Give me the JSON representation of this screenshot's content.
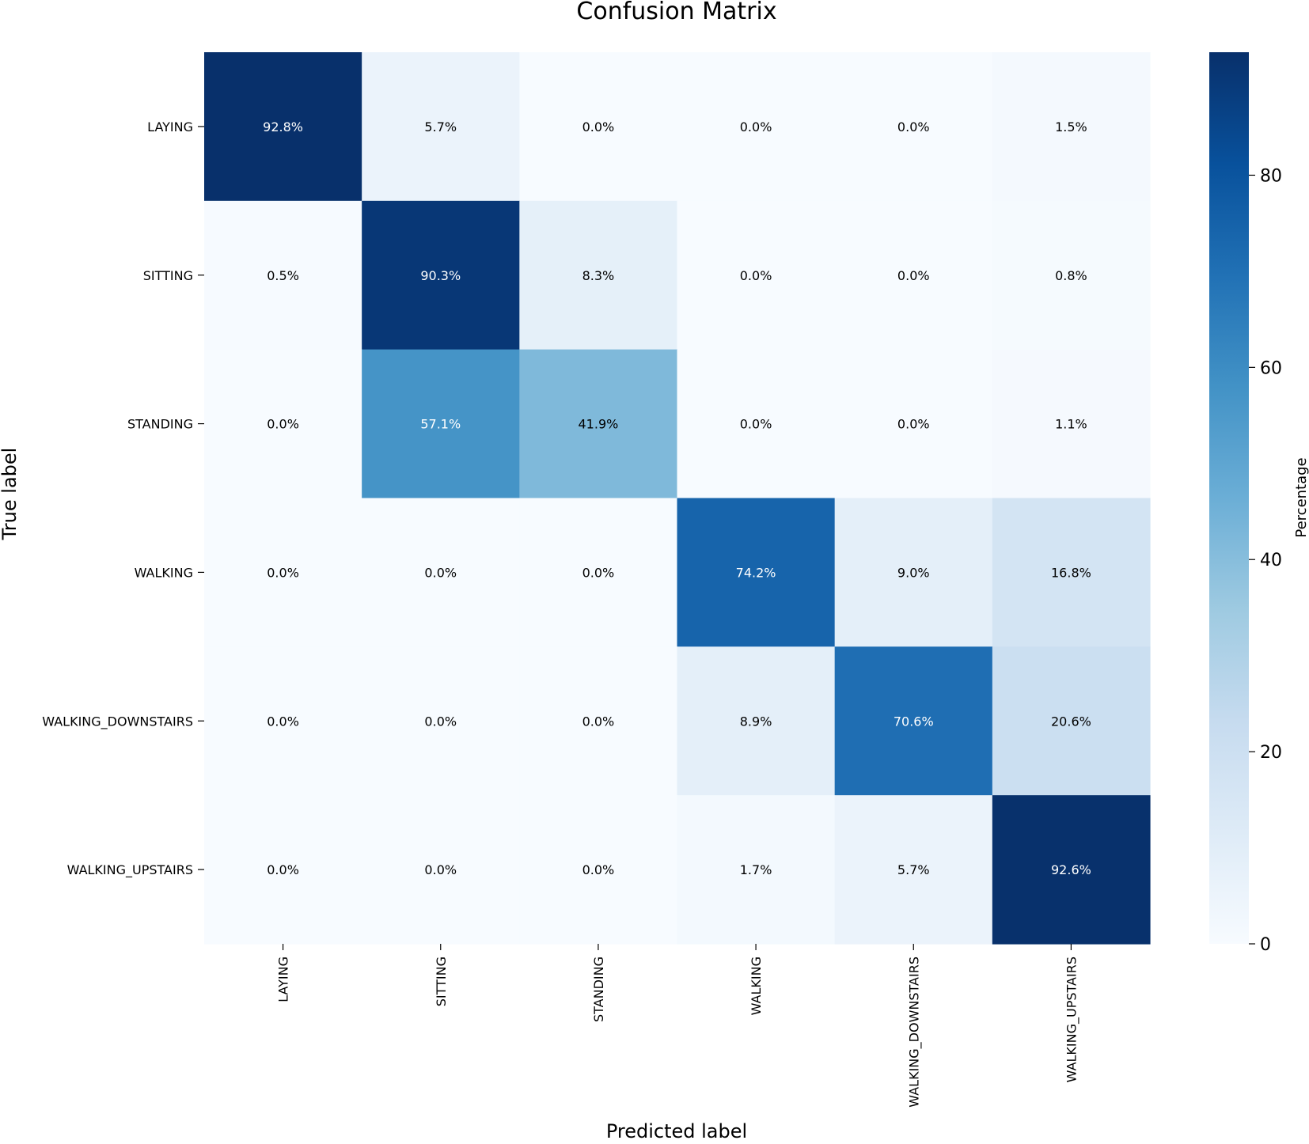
{
  "chart_data": {
    "type": "heatmap",
    "title": "Confusion Matrix",
    "xlabel": "Predicted label",
    "ylabel": "True label",
    "x_categories": [
      "LAYING",
      "SITTING",
      "STANDING",
      "WALKING",
      "WALKING_DOWNSTAIRS",
      "WALKING_UPSTAIRS"
    ],
    "y_categories": [
      "LAYING",
      "SITTING",
      "STANDING",
      "WALKING",
      "WALKING_DOWNSTAIRS",
      "WALKING_UPSTAIRS"
    ],
    "values": [
      [
        92.8,
        5.7,
        0.0,
        0.0,
        0.0,
        1.5
      ],
      [
        0.5,
        90.3,
        8.3,
        0.0,
        0.0,
        0.8
      ],
      [
        0.0,
        57.1,
        41.9,
        0.0,
        0.0,
        1.1
      ],
      [
        0.0,
        0.0,
        0.0,
        74.2,
        9.0,
        16.8
      ],
      [
        0.0,
        0.0,
        0.0,
        8.9,
        70.6,
        20.6
      ],
      [
        0.0,
        0.0,
        0.0,
        1.7,
        5.7,
        92.6
      ]
    ],
    "value_format": "percent_1dp",
    "colormap": "Blues",
    "colorbar": {
      "label": "Percentage",
      "range": [
        0,
        92.8
      ],
      "ticks": [
        0,
        20,
        40,
        60,
        80
      ]
    }
  }
}
